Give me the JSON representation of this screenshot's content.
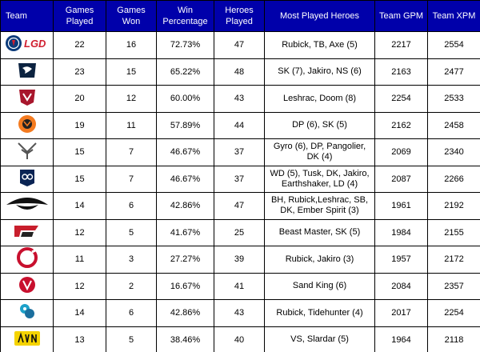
{
  "headers": {
    "team": "Team",
    "games_played": [
      "Games",
      "Played"
    ],
    "games_won": [
      "Games",
      "Won"
    ],
    "win_pct": [
      "Win",
      "Percentage"
    ],
    "heroes_played": [
      "Heroes",
      "Played"
    ],
    "most_played": "Most Played Heroes",
    "gpm": "Team GPM",
    "xpm": "Team XPM"
  },
  "rows": [
    {
      "logo": "psg-lgd-logo",
      "logo_text": "LGD",
      "played": "22",
      "won": "16",
      "pct": "72.73%",
      "heroes": "47",
      "most": [
        "Rubick, TB, Axe (5)"
      ],
      "gpm": "2217",
      "xpm": "2554"
    },
    {
      "logo": "team-liquid-logo",
      "played": "23",
      "won": "15",
      "pct": "65.22%",
      "heroes": "48",
      "most": [
        "SK (7), Jakiro, NS (6)"
      ],
      "gpm": "2163",
      "xpm": "2477"
    },
    {
      "logo": "vici-gaming-logo",
      "played": "20",
      "won": "12",
      "pct": "60.00%",
      "heroes": "43",
      "most": [
        "Leshrac, Doom (8)"
      ],
      "gpm": "2254",
      "xpm": "2533"
    },
    {
      "logo": "virtus-pro-logo",
      "played": "19",
      "won": "11",
      "pct": "57.89%",
      "heroes": "44",
      "most": [
        "DP (6), SK (5)"
      ],
      "gpm": "2162",
      "xpm": "2458"
    },
    {
      "logo": "winstrike-logo",
      "played": "15",
      "won": "7",
      "pct": "46.67%",
      "heroes": "37",
      "most": [
        "Gyro (6), DP, Pangolier,",
        "DK (4)"
      ],
      "gpm": "2069",
      "xpm": "2340"
    },
    {
      "logo": "og-logo",
      "played": "15",
      "won": "7",
      "pct": "46.67%",
      "heroes": "37",
      "most": [
        "WD (5), Tusk, DK, Jakiro,",
        "Earthshaker, LD (4)"
      ],
      "gpm": "2087",
      "xpm": "2266"
    },
    {
      "logo": "team-secret-logo",
      "played": "14",
      "won": "6",
      "pct": "42.86%",
      "heroes": "47",
      "most": [
        "BH, Rubick,Leshrac, SB,",
        "DK, Ember Spirit (3)"
      ],
      "gpm": "1961",
      "xpm": "2192"
    },
    {
      "logo": "pain-gaming-logo",
      "played": "12",
      "won": "5",
      "pct": "41.67%",
      "heroes": "25",
      "most": [
        "Beast Master, SK (5)"
      ],
      "gpm": "1984",
      "xpm": "2155"
    },
    {
      "logo": "complexity-logo",
      "played": "11",
      "won": "3",
      "pct": "27.27%",
      "heroes": "39",
      "most": [
        "Rubick, Jakiro (3)"
      ],
      "gpm": "1957",
      "xpm": "2172"
    },
    {
      "logo": "vgj-storm-logo",
      "played": "12",
      "won": "2",
      "pct": "16.67%",
      "heroes": "41",
      "most": [
        "Sand King (6)"
      ],
      "gpm": "2084",
      "xpm": "2357"
    },
    {
      "logo": "tnc-logo",
      "played": "14",
      "won": "6",
      "pct": "42.86%",
      "heroes": "43",
      "most": [
        "Rubick, Tidehunter (4)"
      ],
      "gpm": "2017",
      "xpm": "2254"
    },
    {
      "logo": "navi-logo",
      "played": "13",
      "won": "5",
      "pct": "38.46%",
      "heroes": "40",
      "most": [
        "VS, Slardar (5)"
      ],
      "gpm": "1964",
      "xpm": "2118"
    }
  ]
}
